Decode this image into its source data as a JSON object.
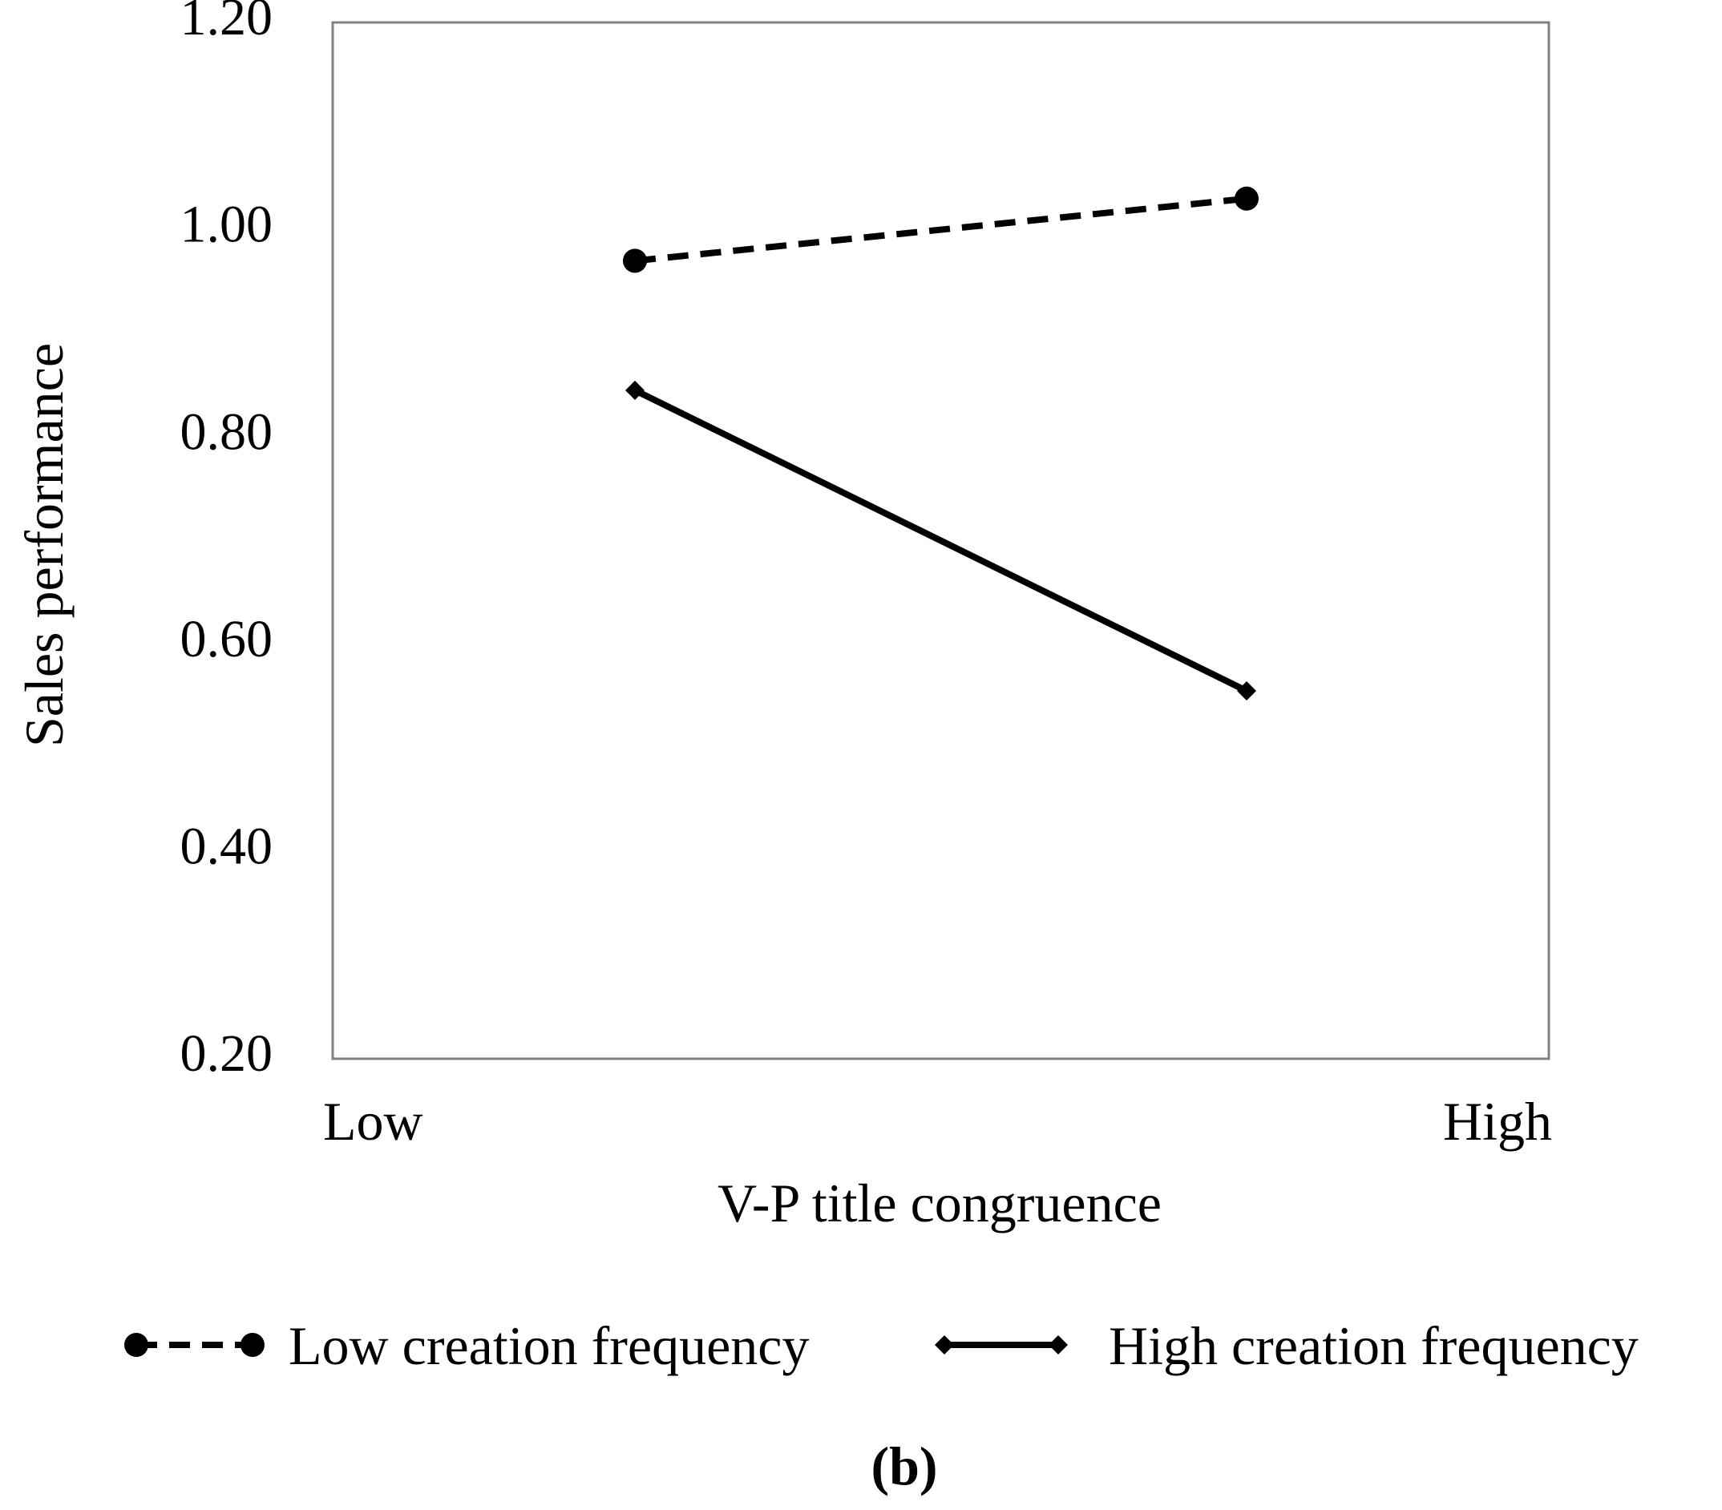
{
  "chart_data": {
    "type": "line",
    "title": "",
    "xlabel": "V-P title congruence",
    "ylabel": "Sales performance",
    "ylim": [
      0.2,
      1.2
    ],
    "yticks": [
      "1.20",
      "1.00",
      "0.80",
      "0.60",
      "0.40",
      "0.20"
    ],
    "x_axis_labels": [
      "Low",
      "High"
    ],
    "x": [
      "Low",
      "High"
    ],
    "series": [
      {
        "name": "Low creation frequency",
        "values": [
          0.97,
          1.03
        ],
        "line_style": "dashed",
        "marker": "circle",
        "color": "#000000"
      },
      {
        "name": "High creation frequency",
        "values": [
          0.845,
          0.555
        ],
        "line_style": "solid",
        "marker": "diamond",
        "color": "#000000"
      }
    ],
    "legend_position": "bottom",
    "grid": false
  },
  "panel_label": "(b)"
}
